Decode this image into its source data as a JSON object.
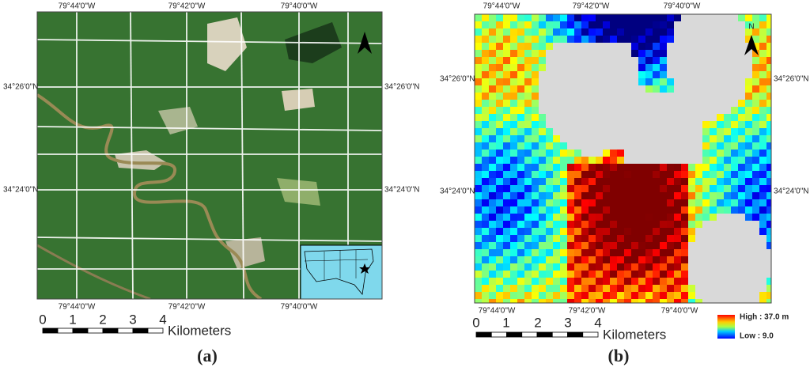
{
  "panels": [
    {
      "label": "(a)",
      "top_labels": [
        "79°44'0\"W",
        "79°42'0\"W",
        "79°40'0\"W"
      ],
      "bottom_labels": [
        "79°44'0\"W",
        "79°42'0\"W",
        "79°40'0\"W"
      ],
      "left_labels": [
        "34°26'0\"N",
        "34°24'0\"N"
      ],
      "right_labels": [
        "34°26'0\"N",
        "34°24'0\"N"
      ],
      "scale_labels": [
        "0",
        "1",
        "2",
        "3",
        "4"
      ],
      "scale_unit": "Kilometers"
    },
    {
      "label": "(b)",
      "top_labels": [
        "79°44'0\"W",
        "79°42'0\"W",
        "79°40'0\"W"
      ],
      "bottom_labels": [
        "79°44'0\"W",
        "79°42'0\"W",
        "79°40'0\"W"
      ],
      "left_labels": [
        "34°26'0\"N",
        "34°24'0\"N"
      ],
      "right_labels": [
        "34°26'0\"N",
        "34°24'0\"N"
      ],
      "scale_labels": [
        "0",
        "1",
        "2",
        "3",
        "4"
      ],
      "scale_unit": "Kilometers",
      "north": "N",
      "legend": {
        "high": "High : 37.0 m",
        "low": "Low : 9.0"
      }
    }
  ]
}
